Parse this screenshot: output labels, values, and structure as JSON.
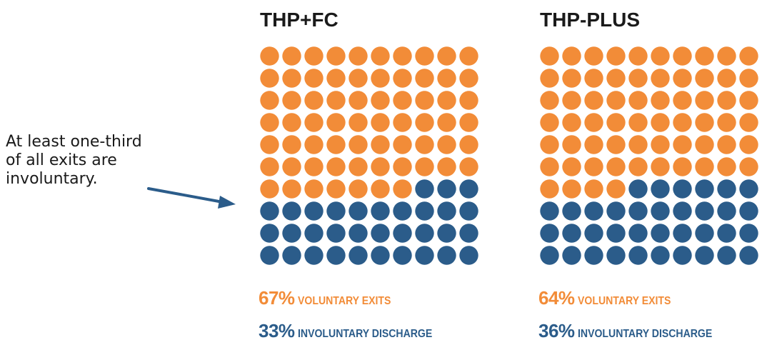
{
  "annotation": {
    "lines": [
      "At least one-third",
      "of all exits are",
      "involuntary."
    ]
  },
  "chart_data": [
    {
      "type": "waffle",
      "title": "THP+FC",
      "grid": {
        "rows": 10,
        "cols": 10
      },
      "series": [
        {
          "name": "VOLUNTARY EXITS",
          "value": 67,
          "label": "67%",
          "color": "#f28c38"
        },
        {
          "name": "INVOLUNTARY DISCHARGE",
          "value": 33,
          "label": "33%",
          "color": "#2b5c8a"
        }
      ]
    },
    {
      "type": "waffle",
      "title": "THP-PLUS",
      "grid": {
        "rows": 10,
        "cols": 10
      },
      "series": [
        {
          "name": "VOLUNTARY EXITS",
          "value": 64,
          "label": "64%",
          "color": "#f28c38"
        },
        {
          "name": "INVOLUNTARY DISCHARGE",
          "value": 36,
          "label": "36%",
          "color": "#2b5c8a"
        }
      ]
    }
  ],
  "colors": {
    "voluntary": "#f28c38",
    "involuntary": "#2b5c8a",
    "arrow": "#2b5c8a",
    "text": "#1a1a1a"
  }
}
